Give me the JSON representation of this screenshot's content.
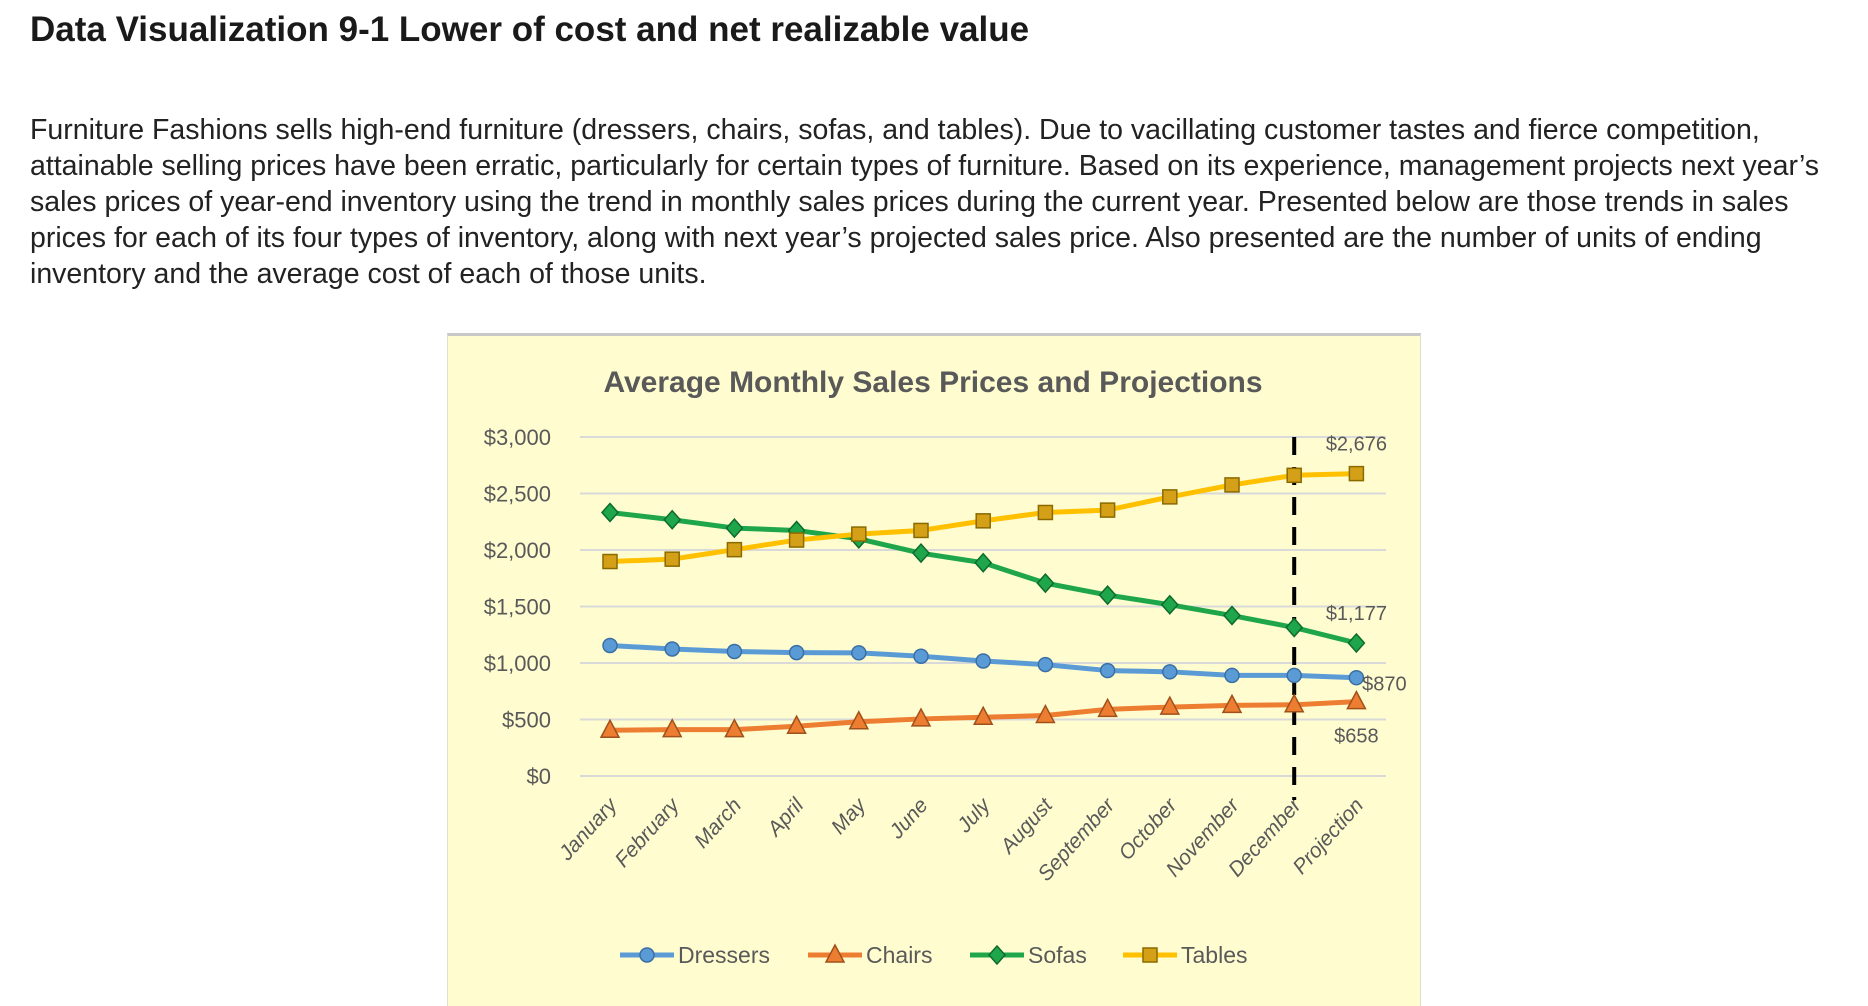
{
  "page": {
    "heading": "Data Visualization 9-1 Lower of cost and net realizable value",
    "intro": "Furniture Fashions sells high-end furniture (dressers, chairs, sofas, and tables). Due to vacillating customer tastes and fierce competition, attainable selling prices have been erratic, particularly for certain types of furniture. Based on its experience, management projects next year’s sales prices of year-end inventory using the trend in monthly sales prices during the current year. Presented below are those trends in sales prices for each of its four types of inventory, along with next year’s projected sales price. Also presented are the number of units of ending inventory and the average cost of each of those units."
  },
  "chart_data": {
    "type": "line",
    "title": "Average Monthly Sales Prices and Projections",
    "xlabel": "",
    "ylabel": "",
    "ylim": [
      0,
      3000
    ],
    "yticks": [
      0,
      500,
      1000,
      1500,
      2000,
      2500,
      3000
    ],
    "ytick_labels": [
      "$0",
      "$500",
      "$1,000",
      "$1,500",
      "$2,000",
      "$2,500",
      "$3,000"
    ],
    "grid": true,
    "legend": "bottom",
    "categories": [
      "January",
      "February",
      "March",
      "April",
      "May",
      "June",
      "July",
      "August",
      "September",
      "October",
      "November",
      "December",
      "Projection"
    ],
    "divider_after": "December",
    "series": [
      {
        "name": "Dressers",
        "color": "#5b9bd5",
        "marker": "circle",
        "values": [
          1155,
          1124,
          1102,
          1092,
          1090,
          1060,
          1018,
          986,
          933,
          922,
          890,
          890,
          870
        ]
      },
      {
        "name": "Chairs",
        "color": "#ed7d31",
        "marker": "triangle",
        "values": [
          405,
          410,
          410,
          440,
          480,
          505,
          520,
          535,
          590,
          610,
          625,
          630,
          658
        ]
      },
      {
        "name": "Sofas",
        "color": "#1fa64b",
        "marker": "diamond",
        "values": [
          2332,
          2268,
          2194,
          2173,
          2099,
          1972,
          1887,
          1707,
          1601,
          1516,
          1420,
          1314,
          1177
        ]
      },
      {
        "name": "Tables",
        "color": "#ffc000",
        "marker": "square",
        "values": [
          1898,
          1919,
          2003,
          2088,
          2141,
          2173,
          2258,
          2332,
          2353,
          2470,
          2576,
          2661,
          2676
        ]
      }
    ],
    "data_labels": [
      {
        "series": "Tables",
        "text": "$2,676"
      },
      {
        "series": "Sofas",
        "text": "$1,177"
      },
      {
        "series": "Dressers",
        "text": "$870"
      },
      {
        "series": "Chairs",
        "text": "$658"
      }
    ]
  }
}
